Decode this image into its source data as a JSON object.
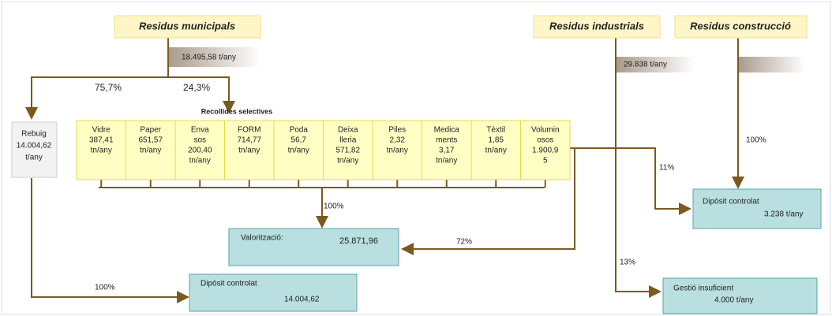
{
  "sources": {
    "municipal": "Residus municipals",
    "industrial": "Residus industrials",
    "construction": "Residus construcció"
  },
  "amounts": {
    "municipal": "18.495,58 t/any",
    "industrial": "29.838 t/any"
  },
  "percentages": {
    "rebuig": "75,7%",
    "selectives": "24,3%",
    "valoritzacio": "100%",
    "rebuig_diposit": "100%",
    "ind_diposit": "11%",
    "ind_valor": "72%",
    "ind_gestio": "13%",
    "construction": "100%"
  },
  "selectives_title": "Recollides selectives",
  "rebuig": [
    "Rebuig",
    "14.004,62",
    "t/any"
  ],
  "cells": [
    [
      "Vidre",
      "387,41",
      "tn/any"
    ],
    [
      "Paper",
      "651,57",
      "tn/any"
    ],
    [
      "Enva",
      "sos",
      "200,40",
      "tn/any"
    ],
    [
      "FORM",
      "714,77",
      "tn/any"
    ],
    [
      "Poda",
      "56,7",
      "tn/any"
    ],
    [
      "Deixa",
      "lleria",
      "571,82",
      "tn/any"
    ],
    [
      "Piles",
      "2,32",
      "tn/any"
    ],
    [
      "Medica",
      "ments",
      "3,17",
      "tn/any"
    ],
    [
      "Tèxtil",
      "1,85",
      "tn/any"
    ],
    [
      "Volumin",
      "osos",
      "1.900,9",
      "5"
    ]
  ],
  "valoritzacio": {
    "label": "Valorització:",
    "value": "25.871,96"
  },
  "diposit_rebuig": {
    "label": "Dipòsit controlat",
    "value": "14.004,62"
  },
  "diposit_right": {
    "label": "Dipòsit controlat",
    "value": "3.238 t/any"
  },
  "gestio": {
    "label": "Gestió insuficient",
    "value": "4.000 t/any"
  }
}
